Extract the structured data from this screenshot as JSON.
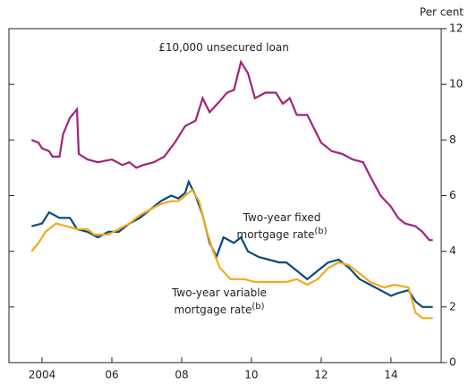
{
  "chart_data": {
    "type": "line",
    "y_axis_label": "Per cent",
    "xlim": [
      2003.05,
      2015.44
    ],
    "xticks": [
      2004,
      {
        "value": 2006,
        "label": "06"
      },
      {
        "value": 2008,
        "label": "08"
      },
      {
        "value": 2010,
        "label": "10"
      },
      {
        "value": 2012,
        "label": "12"
      },
      {
        "value": 2014,
        "label": "14"
      }
    ],
    "ylim": [
      0,
      12
    ],
    "yticks": [
      0,
      2,
      4,
      6,
      8,
      10,
      12
    ],
    "series": [
      {
        "name": "£10,000 unsecured loan",
        "color": "#a0237f",
        "x": [
          2003.7,
          2003.9,
          2004.0,
          2004.2,
          2004.3,
          2004.5,
          2004.6,
          2004.8,
          2005.0,
          2005.05,
          2005.3,
          2005.6,
          2006.0,
          2006.3,
          2006.5,
          2006.7,
          2006.9,
          2007.2,
          2007.5,
          2007.8,
          2008.1,
          2008.4,
          2008.6,
          2008.8,
          2009.1,
          2009.3,
          2009.5,
          2009.7,
          2009.9,
          2010.1,
          2010.4,
          2010.7,
          2010.9,
          2011.1,
          2011.3,
          2011.6,
          2011.8,
          2012.0,
          2012.3,
          2012.6,
          2012.9,
          2013.2,
          2013.4,
          2013.7,
          2014.0,
          2014.2,
          2014.4,
          2014.7,
          2014.9,
          2015.1,
          2015.2
        ],
        "values": [
          8.0,
          7.9,
          7.7,
          7.6,
          7.4,
          7.4,
          8.2,
          8.8,
          9.1,
          7.5,
          7.3,
          7.2,
          7.3,
          7.1,
          7.2,
          7.0,
          7.1,
          7.2,
          7.4,
          7.9,
          8.5,
          8.7,
          9.5,
          9.0,
          9.4,
          9.7,
          9.8,
          10.8,
          10.4,
          9.5,
          9.7,
          9.7,
          9.3,
          9.5,
          8.9,
          8.9,
          8.4,
          7.9,
          7.6,
          7.5,
          7.3,
          7.2,
          6.7,
          6.0,
          5.6,
          5.2,
          5.0,
          4.9,
          4.7,
          4.4,
          4.4
        ]
      },
      {
        "name": "Two-year fixed mortgage rate",
        "note": "(b)",
        "color": "#0b4a7a",
        "x": [
          2003.7,
          2004.0,
          2004.2,
          2004.5,
          2004.8,
          2005.0,
          2005.3,
          2005.6,
          2005.9,
          2006.2,
          2006.5,
          2006.8,
          2007.1,
          2007.4,
          2007.7,
          2007.9,
          2008.1,
          2008.2,
          2008.4,
          2008.6,
          2008.8,
          2009.0,
          2009.2,
          2009.5,
          2009.7,
          2009.9,
          2010.2,
          2010.5,
          2010.8,
          2011.0,
          2011.3,
          2011.6,
          2011.9,
          2012.2,
          2012.5,
          2012.8,
          2013.1,
          2013.4,
          2013.7,
          2014.0,
          2014.2,
          2014.5,
          2014.7,
          2014.9,
          2015.2
        ],
        "values": [
          4.9,
          5.0,
          5.4,
          5.2,
          5.2,
          4.8,
          4.7,
          4.5,
          4.7,
          4.7,
          5.0,
          5.2,
          5.5,
          5.8,
          6.0,
          5.9,
          6.1,
          6.5,
          6.0,
          5.3,
          4.3,
          3.8,
          4.5,
          4.3,
          4.5,
          4.0,
          3.8,
          3.7,
          3.6,
          3.6,
          3.3,
          3.0,
          3.3,
          3.6,
          3.7,
          3.4,
          3.0,
          2.8,
          2.6,
          2.4,
          2.5,
          2.6,
          2.2,
          2.0,
          2.0
        ]
      },
      {
        "name": "Two-year variable mortgage rate",
        "note": "(b)",
        "color": "#f2a91b",
        "x": [
          2003.7,
          2003.9,
          2004.1,
          2004.4,
          2004.7,
          2005.0,
          2005.3,
          2005.5,
          2005.9,
          2006.2,
          2006.5,
          2006.8,
          2007.1,
          2007.4,
          2007.7,
          2007.9,
          2008.1,
          2008.3,
          2008.5,
          2008.7,
          2008.9,
          2009.1,
          2009.4,
          2009.8,
          2010.1,
          2010.6,
          2011.0,
          2011.3,
          2011.6,
          2011.9,
          2012.2,
          2012.5,
          2012.8,
          2013.1,
          2013.4,
          2013.8,
          2014.1,
          2014.5,
          2014.7,
          2014.9,
          2015.2
        ],
        "values": [
          4.0,
          4.3,
          4.7,
          5.0,
          4.9,
          4.8,
          4.8,
          4.6,
          4.6,
          4.8,
          5.0,
          5.3,
          5.5,
          5.7,
          5.8,
          5.8,
          6.0,
          6.2,
          5.8,
          4.8,
          4.0,
          3.4,
          3.0,
          3.0,
          2.9,
          2.9,
          2.9,
          3.0,
          2.8,
          3.0,
          3.4,
          3.6,
          3.5,
          3.2,
          2.9,
          2.7,
          2.8,
          2.7,
          1.8,
          1.6,
          1.6
        ]
      }
    ]
  }
}
